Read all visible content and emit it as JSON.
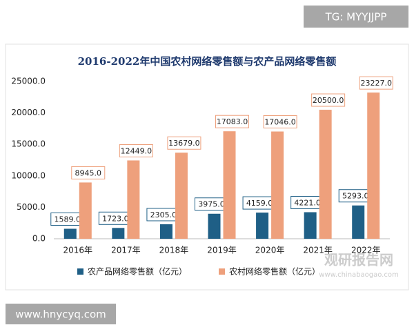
{
  "badge": "TG: MYYJJPP",
  "footer": "www.hnycyq.com",
  "watermark": "观研报告网",
  "watermark_url": "www.chinabaogao.com",
  "chart_data": {
    "type": "bar",
    "title": "2016-2022年中国农村网络零售额与农产品网络零售额",
    "categories": [
      "2016年",
      "2017年",
      "2018年",
      "2019年",
      "2020年",
      "2021年",
      "2022年"
    ],
    "series": [
      {
        "name": "农产品网络零售额（亿元）",
        "color": "#1f5f86",
        "values": [
          1589,
          1723,
          2305,
          3975,
          4159,
          4221,
          5293
        ],
        "value_labels": [
          "1589.0",
          "1723.0",
          "2305.0",
          "3975.0",
          "4159.0",
          "4221.0",
          "5293.0"
        ]
      },
      {
        "name": "农村网络零售额（亿元）",
        "color": "#eea07c",
        "values": [
          8945,
          12449,
          13679,
          17083,
          17046,
          20500,
          23227
        ],
        "value_labels": [
          "8945.0",
          "12449.0",
          "13679.0",
          "17083.0",
          "17046.0",
          "20500.0",
          "23227.0"
        ]
      }
    ],
    "ylim": [
      0,
      25000
    ],
    "yticks": [
      {
        "value": 0,
        "label": "0.0"
      },
      {
        "value": 5000,
        "label": "5000.0"
      },
      {
        "value": 10000,
        "label": "10000.0"
      },
      {
        "value": 15000,
        "label": "15000.0"
      },
      {
        "value": 20000,
        "label": "20000.0"
      },
      {
        "value": 25000,
        "label": "25000.0"
      }
    ],
    "grid": false,
    "legend": "bottom"
  }
}
